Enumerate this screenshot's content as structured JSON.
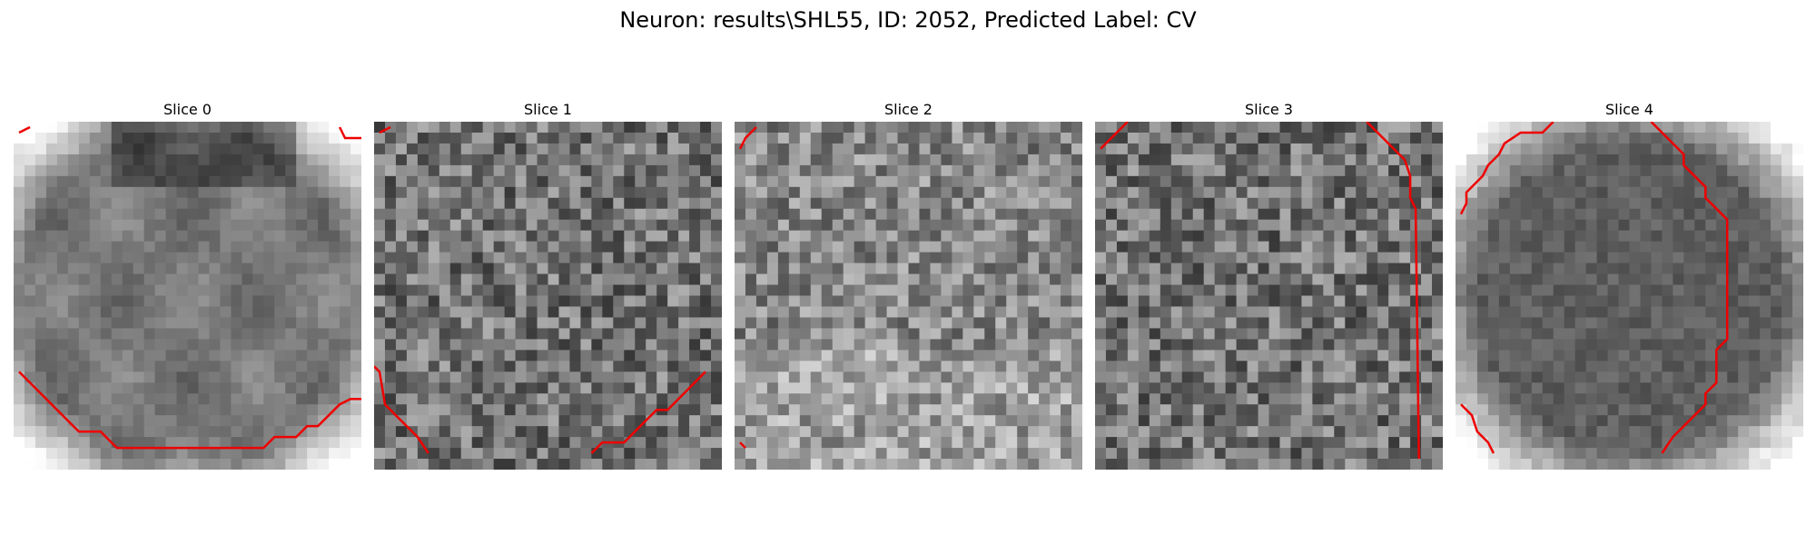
{
  "figure": {
    "title": "Neuron: results\\SHL55, ID: 2052, Predicted Label: CV",
    "colormap": "gray",
    "contour_color": "#ee0000"
  },
  "slices": [
    {
      "title": "Slice 0",
      "texture": "cell-body-bright-corners"
    },
    {
      "title": "Slice 1",
      "texture": "noisy-gray"
    },
    {
      "title": "Slice 2",
      "texture": "noisy-light"
    },
    {
      "title": "Slice 3",
      "texture": "noisy-gray"
    },
    {
      "title": "Slice 4",
      "texture": "cell-body-bright-border"
    }
  ]
}
